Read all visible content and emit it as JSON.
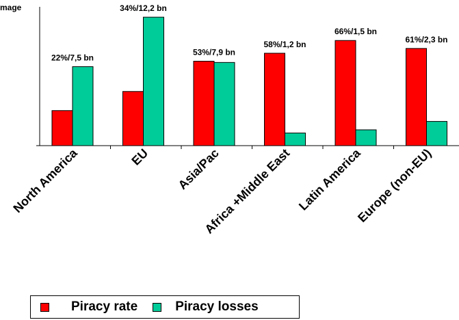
{
  "chart_data": {
    "type": "bar",
    "title": "",
    "corner_label": "mage",
    "xlabel": "",
    "ylabel": "",
    "grid": false,
    "legend_position": "bottom-left",
    "categories": [
      "North America",
      "EU",
      "Asia/Pac",
      "Africa +Middle East",
      "Latin America",
      "Europe (non-EU)"
    ],
    "series": [
      {
        "name": "Piracy rate",
        "color": "#ff0000",
        "values": [
          22,
          34,
          53,
          58,
          66,
          61
        ]
      },
      {
        "name": "Piracy losses",
        "color": "#00cc99",
        "values": [
          7.5,
          12.2,
          7.9,
          1.2,
          1.5,
          2.3
        ]
      }
    ],
    "annotations": [
      "22%/7,5 bn",
      "34%/12,2 bn",
      "53%/7,9 bn",
      "58%/1,2 bn",
      "66%/1,5 bn",
      "61%/2,3 bn"
    ]
  }
}
